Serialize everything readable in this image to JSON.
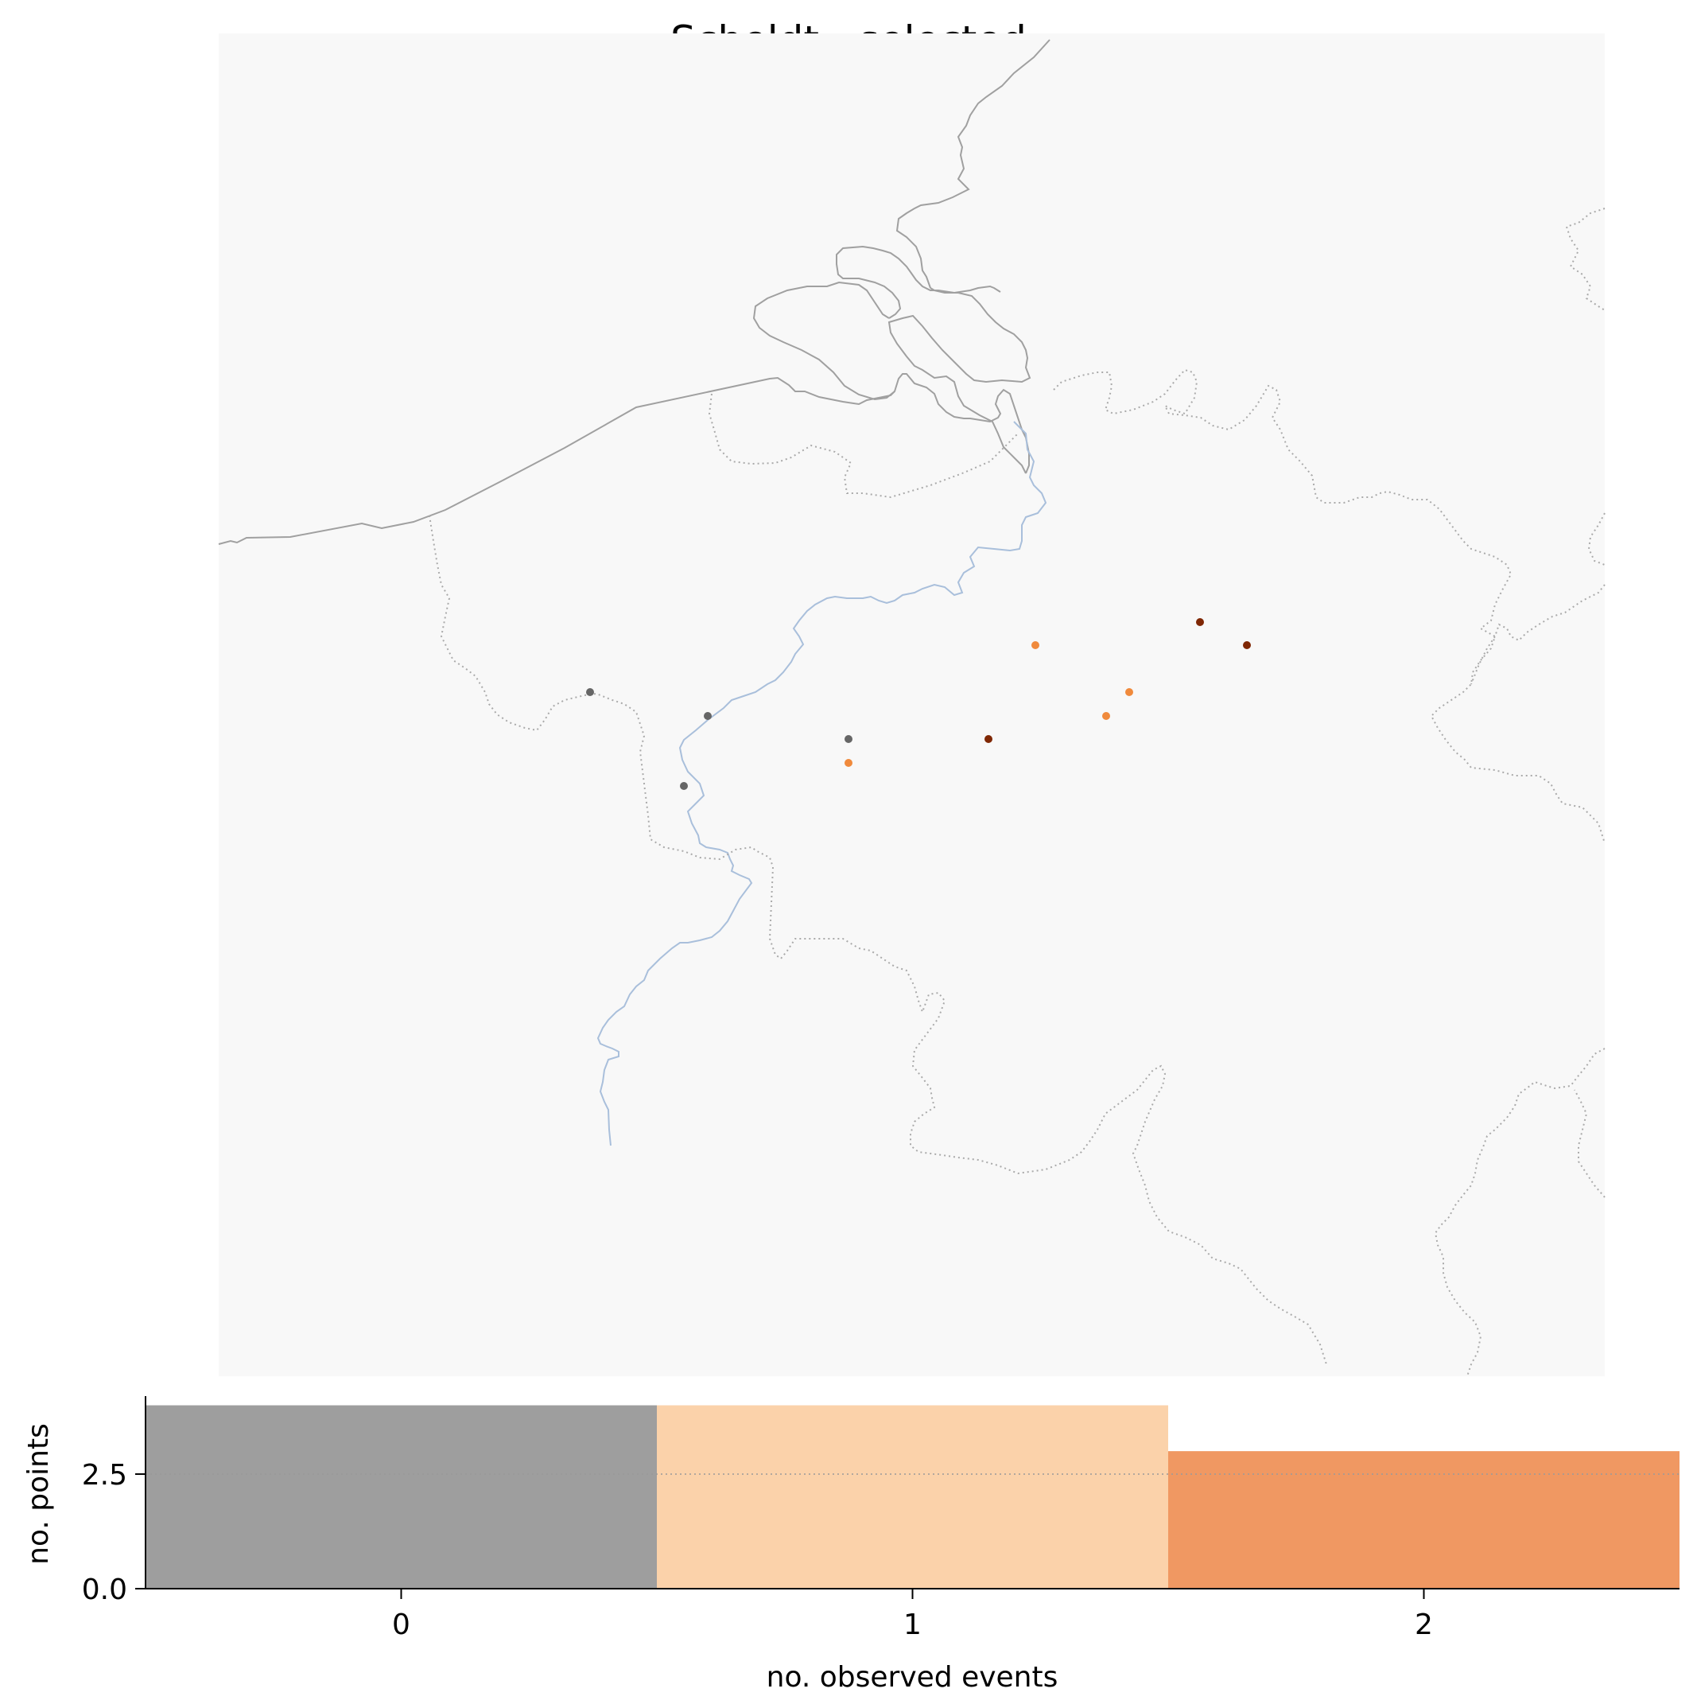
{
  "chart_data": [
    {
      "type": "scatter",
      "title": "Scheldt - selected",
      "description_map": "Map panel with coastline, Scheldt river and dotted borders; station points colored by observed events",
      "series": [
        {
          "name": "0",
          "color": "#666666",
          "points": [
            [
              0,
              0
            ],
            [
              0,
              0
            ],
            [
              0,
              0
            ],
            [
              0,
              0
            ]
          ]
        },
        {
          "name": "1",
          "color": "#f08a3c",
          "points": [
            [
              0,
              0
            ],
            [
              0,
              0
            ],
            [
              0,
              0
            ],
            [
              0,
              0
            ]
          ]
        },
        {
          "name": "2",
          "color": "#7f2704",
          "points": [
            [
              0,
              0
            ],
            [
              0,
              0
            ],
            [
              0,
              0
            ]
          ]
        }
      ]
    },
    {
      "type": "bar",
      "categories": [
        "0",
        "1",
        "2"
      ],
      "values": [
        4,
        4,
        3
      ],
      "colors": [
        "#9e9e9e",
        "#fbd2aa",
        "#f09862"
      ],
      "xlabel": "no. observed events",
      "ylabel": "no. points",
      "ylim": [
        0,
        4.2
      ],
      "yticks": [
        "0.0",
        "2.5"
      ],
      "xticks": [
        "0",
        "1",
        "2"
      ],
      "grid": "horizontal dotted at 2.5"
    }
  ],
  "map": {
    "background": "#f8f8f8",
    "coast_color": "#a0a0a0",
    "river_color": "#a9bfdb",
    "border_color": "#aaaaaa"
  }
}
